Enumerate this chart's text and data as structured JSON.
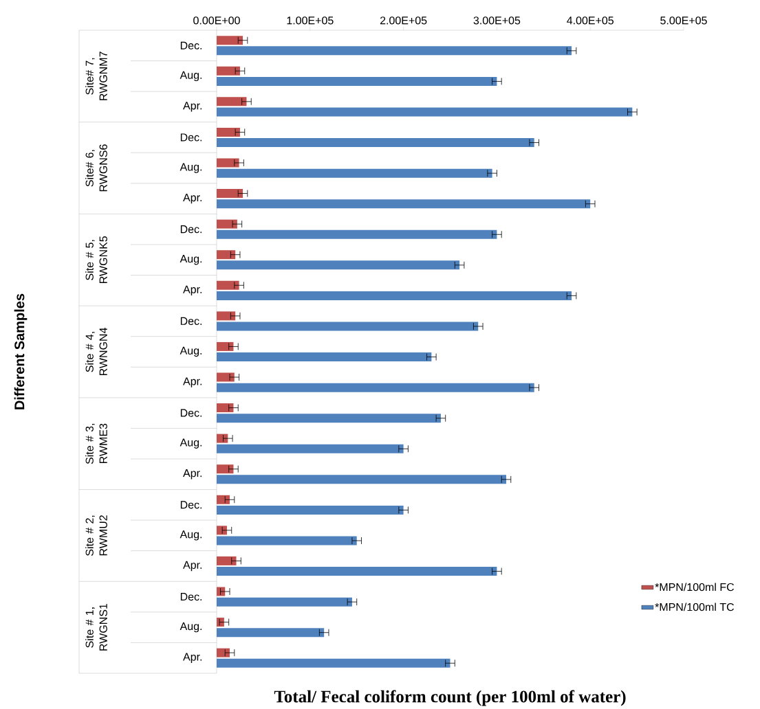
{
  "chart_data": {
    "type": "bar",
    "orientation": "horizontal",
    "xlabel": "Total/ Fecal coliform count (per 100ml of water)",
    "categories": [
      "Dec.",
      "Aug.",
      "Apr.",
      "Dec.",
      "Aug.",
      "Apr.",
      "Dec.",
      "Aug.",
      "Apr.",
      "Dec.",
      "Aug.",
      "Apr.",
      "Dec.",
      "Aug.",
      "Apr.",
      "Dec.",
      "Aug.",
      "Apr.",
      "Dec.",
      "Aug.",
      "Apr."
    ],
    "annotations": [
      "Different Samples",
      "Site# 7, RWGNM7",
      "Site# 6, RWGNS6",
      "Site # 5, RWGNK5",
      "Site # 4, RWNGN4",
      "Site # 3, RWME3",
      "Site # 2, RWMU2",
      "Site # 1, RWGNS1"
    ],
    "series": [
      {
        "name": "*MPN/100ml FC",
        "color": "#c0504d",
        "values": [
          28000,
          25000,
          32000,
          25000,
          24000,
          28000,
          22000,
          20000,
          24000,
          20000,
          18000,
          19000,
          18000,
          12000,
          18000,
          14000,
          11000,
          21000,
          9000,
          8000,
          14000
        ],
        "errors": [
          5000,
          5000,
          5000,
          5000,
          5000,
          5000,
          5000,
          5000,
          5000,
          5000,
          5000,
          5000,
          5000,
          5000,
          5000,
          5000,
          5000,
          5000,
          5000,
          5000,
          5000
        ]
      },
      {
        "name": "*MPN/100ml TC",
        "color": "#4f81bd",
        "values": [
          380000,
          300000,
          445000,
          340000,
          295000,
          400000,
          300000,
          260000,
          380000,
          280000,
          230000,
          340000,
          240000,
          200000,
          310000,
          200000,
          150000,
          300000,
          145000,
          115000,
          250000
        ],
        "errors": [
          5000,
          5000,
          5000,
          5000,
          5000,
          5000,
          5000,
          5000,
          5000,
          5000,
          5000,
          5000,
          5000,
          5000,
          5000,
          5000,
          5000,
          5000,
          5000,
          5000,
          5000
        ]
      }
    ],
    "xlim": [
      0,
      500000
    ],
    "xticks": [
      {
        "value": 0,
        "label": "0.00E+00"
      },
      {
        "value": 100000,
        "label": "1.00E+05"
      },
      {
        "value": 200000,
        "label": "2.00E+05"
      },
      {
        "value": 300000,
        "label": "3.00E+05"
      },
      {
        "value": 400000,
        "label": "4.00E+05"
      },
      {
        "value": 500000,
        "label": "5.00E+05"
      }
    ],
    "legend": "right",
    "grid": false
  }
}
